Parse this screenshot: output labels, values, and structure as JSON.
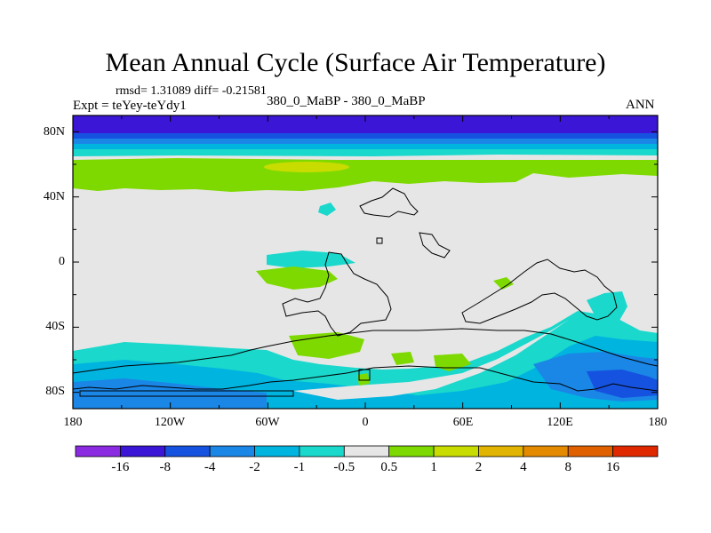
{
  "title": "Mean Annual Cycle (Surface Air Temperature)",
  "stats_text": "rmsd= 1.31089 diff= -0.21581",
  "experiment_text": "Expt = teYey-teYdy1",
  "subtitle": "380_0_MaBP - 380_0_MaBP",
  "season": "ANN",
  "lat_labels": [
    "80N",
    "40N",
    "0",
    "40S",
    "80S"
  ],
  "lon_labels": [
    "180",
    "120W",
    "60W",
    "0",
    "60E",
    "120E",
    "180"
  ],
  "colorbar": {
    "labels": [
      "-16",
      "-8",
      "-4",
      "-2",
      "-1",
      "-0.5",
      "0.5",
      "1",
      "2",
      "4",
      "8",
      "16"
    ],
    "colors": [
      "#8a2be2",
      "#3b16d6",
      "#1652e0",
      "#1a86e6",
      "#00b4e0",
      "#1ad8cc",
      "#e6e6e6",
      "#7ed900",
      "#c8dc00",
      "#e0b400",
      "#e48a00",
      "#e06000",
      "#e02800"
    ]
  },
  "colors": {
    "neutral": "#e6e6e6",
    "cold_strong": "#3b16d6",
    "cold_med": "#1652e0",
    "cold_light": "#1a86e6",
    "cyan": "#00b4e0",
    "teal": "#1ad8cc",
    "green": "#7ed900",
    "yellow_green": "#c8dc00"
  }
}
